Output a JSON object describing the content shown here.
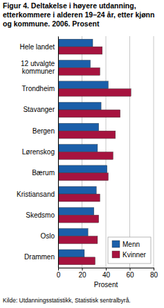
{
  "chart_data": {
    "type": "bar",
    "orientation": "horizontal",
    "title": "Figur 4. Deltakelse i høyere utdanning, etterkommere i alderen 19–24 år, etter kjønn og kommune. 2006. Prosent",
    "x_label": "Prosent",
    "source": "Kilde: Utdanningsstatistikk, Statistisk sentralbyrå.",
    "categories": [
      "Hele landet",
      "12 utvalgte kommuner",
      "Trondheim",
      "Stavanger",
      "Bergen",
      "Lørenskog",
      "Bærum",
      "Kristiansand",
      "Skedsmo",
      "Oslo",
      "Drammen"
    ],
    "series": [
      {
        "name": "Menn",
        "color": "#1b5fa9",
        "values": [
          29,
          27,
          42,
          36,
          34,
          33,
          41,
          32,
          30,
          25,
          22
        ]
      },
      {
        "name": "Kvinner",
        "color": "#a6133f",
        "values": [
          37,
          35,
          61,
          52,
          48,
          46,
          42,
          35,
          34,
          33,
          31
        ]
      }
    ],
    "xlim": [
      0,
      80
    ],
    "xticks": [
      0,
      20,
      40,
      60,
      80
    ],
    "grid": true,
    "legend": "lower right"
  }
}
